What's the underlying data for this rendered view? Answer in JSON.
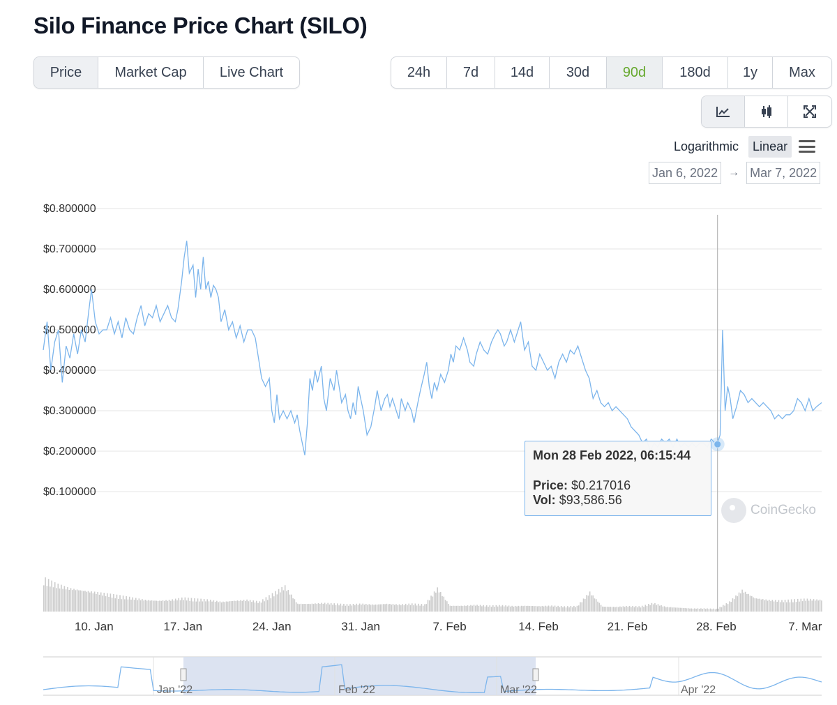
{
  "page": {
    "title": "Silo Finance Price Chart (SILO)"
  },
  "chart_type_tabs": [
    {
      "label": "Price",
      "selected": true
    },
    {
      "label": "Market Cap",
      "selected": false
    },
    {
      "label": "Live Chart",
      "selected": false
    }
  ],
  "range_tabs": [
    {
      "label": "24h",
      "selected": false
    },
    {
      "label": "7d",
      "selected": false
    },
    {
      "label": "14d",
      "selected": false
    },
    {
      "label": "30d",
      "selected": false
    },
    {
      "label": "90d",
      "selected": true
    },
    {
      "label": "180d",
      "selected": false
    },
    {
      "label": "1y",
      "selected": false
    },
    {
      "label": "Max",
      "selected": false
    }
  ],
  "tools": [
    {
      "icon": "line-chart-icon",
      "selected": true
    },
    {
      "icon": "candlestick-icon",
      "selected": false
    },
    {
      "icon": "fullscreen-icon",
      "selected": false
    }
  ],
  "scale": {
    "log_label": "Logarithmic",
    "linear_label": "Linear",
    "active": "Linear"
  },
  "date_range": {
    "from": "Jan 6, 2022",
    "to": "Mar 7, 2022",
    "arrow": "→"
  },
  "colors": {
    "line": "#7cb5ec",
    "accent_green": "#65a82d",
    "volume": "#cccccc",
    "navigator_mask": "#d6deef"
  },
  "tooltip": {
    "date": "Mon 28 Feb 2022, 06:15:44",
    "price_label": "Price:",
    "price_value": "$0.217016",
    "vol_label": "Vol:",
    "vol_value": "$93,586.56"
  },
  "watermark": "CoinGecko",
  "chart_data": {
    "type": "line",
    "y_tick_labels": [
      "$0.800000",
      "$0.700000",
      "$0.600000",
      "$0.500000",
      "$0.400000",
      "$0.300000",
      "$0.200000",
      "$0.100000"
    ],
    "y_ticks": [
      0.8,
      0.7,
      0.6,
      0.5,
      0.4,
      0.3,
      0.2,
      0.1
    ],
    "ylim": [
      0,
      0.8
    ],
    "x_tick_labels": [
      "10. Jan",
      "17. Jan",
      "24. Jan",
      "31. Jan",
      "7. Feb",
      "14. Feb",
      "21. Feb",
      "28. Feb",
      "7. Mar"
    ],
    "x_tick_days": [
      4,
      11,
      18,
      25,
      32,
      39,
      46,
      53,
      60
    ],
    "xlim_days": [
      0,
      61.3
    ],
    "series": [
      {
        "points": [
          [
            0.0,
            0.45
          ],
          [
            0.3,
            0.52
          ],
          [
            0.6,
            0.4
          ],
          [
            0.9,
            0.47
          ],
          [
            1.2,
            0.5
          ],
          [
            1.5,
            0.37
          ],
          [
            1.8,
            0.46
          ],
          [
            2.1,
            0.43
          ],
          [
            2.4,
            0.49
          ],
          [
            2.7,
            0.44
          ],
          [
            3.0,
            0.5
          ],
          [
            3.3,
            0.47
          ],
          [
            3.6,
            0.55
          ],
          [
            3.8,
            0.6
          ],
          [
            4.1,
            0.52
          ],
          [
            4.4,
            0.49
          ],
          [
            4.7,
            0.5
          ],
          [
            5.0,
            0.5
          ],
          [
            5.3,
            0.53
          ],
          [
            5.6,
            0.49
          ],
          [
            5.9,
            0.52
          ],
          [
            6.2,
            0.48
          ],
          [
            6.5,
            0.53
          ],
          [
            6.8,
            0.5
          ],
          [
            7.1,
            0.49
          ],
          [
            7.4,
            0.53
          ],
          [
            7.7,
            0.56
          ],
          [
            8.0,
            0.51
          ],
          [
            8.3,
            0.54
          ],
          [
            8.6,
            0.53
          ],
          [
            8.9,
            0.56
          ],
          [
            9.2,
            0.52
          ],
          [
            9.5,
            0.54
          ],
          [
            9.8,
            0.56
          ],
          [
            10.1,
            0.53
          ],
          [
            10.4,
            0.52
          ],
          [
            10.6,
            0.55
          ],
          [
            10.9,
            0.62
          ],
          [
            11.1,
            0.68
          ],
          [
            11.3,
            0.72
          ],
          [
            11.5,
            0.64
          ],
          [
            11.8,
            0.66
          ],
          [
            12.0,
            0.58
          ],
          [
            12.2,
            0.65
          ],
          [
            12.4,
            0.6
          ],
          [
            12.6,
            0.68
          ],
          [
            12.8,
            0.6
          ],
          [
            13.0,
            0.62
          ],
          [
            13.2,
            0.58
          ],
          [
            13.4,
            0.61
          ],
          [
            13.6,
            0.6
          ],
          [
            13.8,
            0.58
          ],
          [
            14.0,
            0.52
          ],
          [
            14.3,
            0.55
          ],
          [
            14.6,
            0.5
          ],
          [
            14.9,
            0.52
          ],
          [
            15.2,
            0.48
          ],
          [
            15.5,
            0.51
          ],
          [
            15.8,
            0.47
          ],
          [
            16.1,
            0.5
          ],
          [
            16.4,
            0.5
          ],
          [
            16.7,
            0.48
          ],
          [
            17.0,
            0.42
          ],
          [
            17.2,
            0.38
          ],
          [
            17.5,
            0.36
          ],
          [
            17.8,
            0.38
          ],
          [
            18.0,
            0.3
          ],
          [
            18.2,
            0.27
          ],
          [
            18.4,
            0.34
          ],
          [
            18.6,
            0.28
          ],
          [
            18.9,
            0.3
          ],
          [
            19.2,
            0.28
          ],
          [
            19.5,
            0.3
          ],
          [
            19.8,
            0.27
          ],
          [
            20.0,
            0.29
          ],
          [
            20.2,
            0.25
          ],
          [
            20.4,
            0.22
          ],
          [
            20.6,
            0.19
          ],
          [
            20.8,
            0.27
          ],
          [
            21.0,
            0.38
          ],
          [
            21.2,
            0.35
          ],
          [
            21.4,
            0.4
          ],
          [
            21.6,
            0.37
          ],
          [
            21.9,
            0.41
          ],
          [
            22.1,
            0.33
          ],
          [
            22.3,
            0.3
          ],
          [
            22.6,
            0.38
          ],
          [
            22.9,
            0.35
          ],
          [
            23.1,
            0.4
          ],
          [
            23.3,
            0.36
          ],
          [
            23.5,
            0.32
          ],
          [
            23.8,
            0.34
          ],
          [
            24.0,
            0.3
          ],
          [
            24.2,
            0.28
          ],
          [
            24.4,
            0.32
          ],
          [
            24.6,
            0.29
          ],
          [
            24.8,
            0.36
          ],
          [
            25.0,
            0.33
          ],
          [
            25.2,
            0.3
          ],
          [
            25.5,
            0.24
          ],
          [
            25.8,
            0.26
          ],
          [
            26.1,
            0.31
          ],
          [
            26.3,
            0.35
          ],
          [
            26.6,
            0.3
          ],
          [
            26.9,
            0.33
          ],
          [
            27.1,
            0.34
          ],
          [
            27.3,
            0.31
          ],
          [
            27.5,
            0.33
          ],
          [
            27.8,
            0.3
          ],
          [
            28.0,
            0.28
          ],
          [
            28.2,
            0.33
          ],
          [
            28.5,
            0.3
          ],
          [
            28.7,
            0.32
          ],
          [
            29.0,
            0.3
          ],
          [
            29.2,
            0.27
          ],
          [
            29.5,
            0.32
          ],
          [
            29.7,
            0.35
          ],
          [
            30.0,
            0.39
          ],
          [
            30.2,
            0.42
          ],
          [
            30.4,
            0.36
          ],
          [
            30.6,
            0.33
          ],
          [
            30.8,
            0.37
          ],
          [
            31.0,
            0.35
          ],
          [
            31.3,
            0.39
          ],
          [
            31.6,
            0.37
          ],
          [
            31.9,
            0.4
          ],
          [
            32.1,
            0.44
          ],
          [
            32.3,
            0.42
          ],
          [
            32.5,
            0.46
          ],
          [
            32.8,
            0.45
          ],
          [
            33.1,
            0.48
          ],
          [
            33.4,
            0.45
          ],
          [
            33.6,
            0.42
          ],
          [
            33.9,
            0.41
          ],
          [
            34.1,
            0.44
          ],
          [
            34.4,
            0.47
          ],
          [
            34.7,
            0.45
          ],
          [
            35.0,
            0.44
          ],
          [
            35.3,
            0.47
          ],
          [
            35.6,
            0.49
          ],
          [
            35.8,
            0.5
          ],
          [
            36.0,
            0.49
          ],
          [
            36.3,
            0.46
          ],
          [
            36.5,
            0.47
          ],
          [
            36.8,
            0.5
          ],
          [
            37.1,
            0.47
          ],
          [
            37.4,
            0.5
          ],
          [
            37.6,
            0.52
          ],
          [
            37.9,
            0.45
          ],
          [
            38.2,
            0.47
          ],
          [
            38.5,
            0.41
          ],
          [
            38.8,
            0.4
          ],
          [
            39.1,
            0.44
          ],
          [
            39.4,
            0.42
          ],
          [
            39.7,
            0.4
          ],
          [
            40.0,
            0.41
          ],
          [
            40.3,
            0.38
          ],
          [
            40.6,
            0.42
          ],
          [
            40.9,
            0.44
          ],
          [
            41.2,
            0.42
          ],
          [
            41.5,
            0.45
          ],
          [
            41.8,
            0.44
          ],
          [
            42.1,
            0.46
          ],
          [
            42.4,
            0.43
          ],
          [
            42.7,
            0.4
          ],
          [
            43.0,
            0.38
          ],
          [
            43.3,
            0.33
          ],
          [
            43.6,
            0.35
          ],
          [
            43.9,
            0.32
          ],
          [
            44.2,
            0.31
          ],
          [
            44.5,
            0.32
          ],
          [
            44.8,
            0.3
          ],
          [
            45.1,
            0.31
          ],
          [
            45.4,
            0.3
          ],
          [
            45.7,
            0.29
          ],
          [
            46.0,
            0.28
          ],
          [
            46.3,
            0.26
          ],
          [
            46.6,
            0.25
          ],
          [
            46.9,
            0.24
          ],
          [
            47.2,
            0.22
          ],
          [
            47.5,
            0.23
          ],
          [
            47.8,
            0.2
          ],
          [
            48.1,
            0.22
          ],
          [
            48.4,
            0.21
          ],
          [
            48.7,
            0.23
          ],
          [
            49.0,
            0.22
          ],
          [
            49.3,
            0.23
          ],
          [
            49.6,
            0.21
          ],
          [
            49.9,
            0.23
          ],
          [
            50.2,
            0.21
          ],
          [
            50.5,
            0.22
          ],
          [
            50.8,
            0.21
          ],
          [
            51.1,
            0.22
          ],
          [
            51.4,
            0.21
          ],
          [
            51.7,
            0.22
          ],
          [
            52.0,
            0.22
          ],
          [
            52.3,
            0.21
          ],
          [
            52.6,
            0.23
          ],
          [
            52.9,
            0.22
          ],
          [
            53.1,
            0.22
          ],
          [
            53.3,
            0.24
          ],
          [
            53.5,
            0.5
          ],
          [
            53.7,
            0.3
          ],
          [
            53.9,
            0.36
          ],
          [
            54.1,
            0.33
          ],
          [
            54.3,
            0.28
          ],
          [
            54.6,
            0.31
          ],
          [
            54.9,
            0.35
          ],
          [
            55.2,
            0.34
          ],
          [
            55.5,
            0.32
          ],
          [
            55.8,
            0.33
          ],
          [
            56.1,
            0.32
          ],
          [
            56.4,
            0.31
          ],
          [
            56.7,
            0.32
          ],
          [
            57.0,
            0.31
          ],
          [
            57.3,
            0.3
          ],
          [
            57.6,
            0.28
          ],
          [
            57.9,
            0.29
          ],
          [
            58.2,
            0.28
          ],
          [
            58.5,
            0.29
          ],
          [
            58.8,
            0.29
          ],
          [
            59.1,
            0.3
          ],
          [
            59.4,
            0.33
          ],
          [
            59.7,
            0.32
          ],
          [
            60.0,
            0.3
          ],
          [
            60.3,
            0.33
          ],
          [
            60.6,
            0.3
          ],
          [
            60.9,
            0.31
          ],
          [
            61.3,
            0.32
          ]
        ]
      }
    ],
    "volume_series": [
      {
        "points": [
          [
            0,
            0.85
          ],
          [
            1,
            0.7
          ],
          [
            2,
            0.6
          ],
          [
            3,
            0.55
          ],
          [
            4,
            0.5
          ],
          [
            5,
            0.45
          ],
          [
            6,
            0.4
          ],
          [
            7,
            0.35
          ],
          [
            8,
            0.3
          ],
          [
            9,
            0.28
          ],
          [
            10,
            0.3
          ],
          [
            11,
            0.35
          ],
          [
            12,
            0.32
          ],
          [
            13,
            0.3
          ],
          [
            14,
            0.25
          ],
          [
            15,
            0.28
          ],
          [
            16,
            0.3
          ],
          [
            17,
            0.25
          ],
          [
            18,
            0.45
          ],
          [
            19,
            0.65
          ],
          [
            20,
            0.2
          ],
          [
            21,
            0.2
          ],
          [
            22,
            0.22
          ],
          [
            23,
            0.2
          ],
          [
            24,
            0.18
          ],
          [
            25,
            0.2
          ],
          [
            26,
            0.18
          ],
          [
            27,
            0.2
          ],
          [
            28,
            0.18
          ],
          [
            29,
            0.2
          ],
          [
            30,
            0.18
          ],
          [
            31,
            0.6
          ],
          [
            32,
            0.15
          ],
          [
            33,
            0.15
          ],
          [
            34,
            0.17
          ],
          [
            35,
            0.15
          ],
          [
            36,
            0.16
          ],
          [
            37,
            0.14
          ],
          [
            38,
            0.15
          ],
          [
            39,
            0.14
          ],
          [
            40,
            0.15
          ],
          [
            41,
            0.13
          ],
          [
            42,
            0.14
          ],
          [
            43,
            0.5
          ],
          [
            44,
            0.13
          ],
          [
            45,
            0.12
          ],
          [
            46,
            0.14
          ],
          [
            47,
            0.13
          ],
          [
            48,
            0.22
          ],
          [
            49,
            0.12
          ],
          [
            50,
            0.1
          ],
          [
            51,
            0.08
          ],
          [
            52,
            0.08
          ],
          [
            53,
            0.07
          ],
          [
            54,
            0.25
          ],
          [
            55,
            0.55
          ],
          [
            56,
            0.35
          ],
          [
            57,
            0.3
          ],
          [
            58,
            0.28
          ],
          [
            59,
            0.3
          ],
          [
            60,
            0.32
          ],
          [
            61.3,
            0.3
          ]
        ]
      }
    ],
    "navigator": {
      "x_tick_labels": [
        "Jan '22",
        "Feb '22",
        "Mar '22",
        "Apr '22"
      ],
      "selected_from": "Jan 6, 2022",
      "selected_to": "Mar 7, 2022"
    },
    "crosshair_day": 53.1,
    "highlight_point": [
      53.1,
      0.217016
    ],
    "grid": true,
    "legend": "none"
  }
}
